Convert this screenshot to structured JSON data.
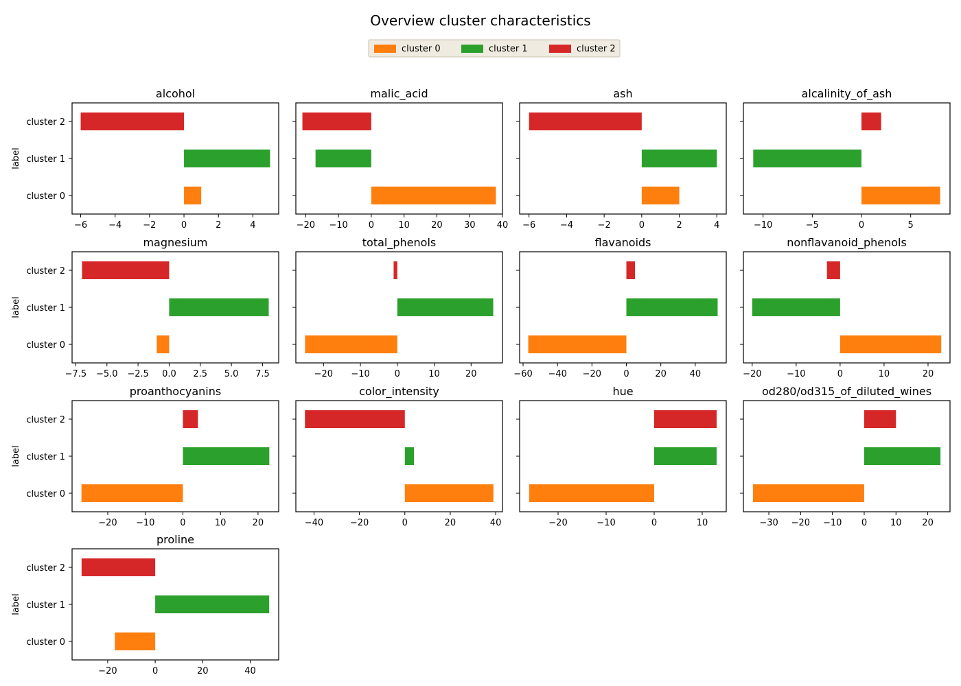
{
  "title": "Overview cluster characteristics",
  "legend": {
    "placement": "top-center",
    "entries": [
      {
        "label": "cluster 0",
        "color": "#ff7f0e"
      },
      {
        "label": "cluster 1",
        "color": "#2ca02c"
      },
      {
        "label": "cluster 2",
        "color": "#d62728"
      }
    ]
  },
  "chart_data": [
    {
      "type": "bar",
      "orientation": "horizontal",
      "title": "alcohol",
      "ylabel": "label",
      "categories": [
        "cluster 0",
        "cluster 1",
        "cluster 2"
      ],
      "values": [
        1,
        5,
        -6
      ],
      "xlim": [
        -6.5,
        5.5
      ],
      "xticks": [
        -6,
        -4,
        -2,
        0,
        2,
        4
      ],
      "xtick_labels": [
        "−6",
        "−4",
        "−2",
        "0",
        "2",
        "4"
      ]
    },
    {
      "type": "bar",
      "orientation": "horizontal",
      "title": "malic_acid",
      "ylabel": "",
      "categories": [
        "cluster 0",
        "cluster 1",
        "cluster 2"
      ],
      "values": [
        38,
        -17,
        -21
      ],
      "xlim": [
        -23,
        40
      ],
      "xticks": [
        -20,
        -10,
        0,
        10,
        20,
        30,
        40
      ],
      "xtick_labels": [
        "−20",
        "−10",
        "0",
        "10",
        "20",
        "30",
        "40"
      ]
    },
    {
      "type": "bar",
      "orientation": "horizontal",
      "title": "ash",
      "ylabel": "",
      "categories": [
        "cluster 0",
        "cluster 1",
        "cluster 2"
      ],
      "values": [
        2,
        4,
        -6
      ],
      "xlim": [
        -6.5,
        4.5
      ],
      "xticks": [
        -6,
        -4,
        -2,
        0,
        2,
        4
      ],
      "xtick_labels": [
        "−6",
        "−4",
        "−2",
        "0",
        "2",
        "4"
      ]
    },
    {
      "type": "bar",
      "orientation": "horizontal",
      "title": "alcalinity_of_ash",
      "ylabel": "",
      "categories": [
        "cluster 0",
        "cluster 1",
        "cluster 2"
      ],
      "values": [
        8,
        -11,
        2
      ],
      "xlim": [
        -12,
        9
      ],
      "xticks": [
        -10,
        -5,
        0,
        5
      ],
      "xtick_labels": [
        "−10",
        "−5",
        "0",
        "5"
      ]
    },
    {
      "type": "bar",
      "orientation": "horizontal",
      "title": "magnesium",
      "ylabel": "label",
      "categories": [
        "cluster 0",
        "cluster 1",
        "cluster 2"
      ],
      "values": [
        -1,
        8,
        -7
      ],
      "xlim": [
        -7.8,
        8.8
      ],
      "xticks": [
        -7.5,
        -5,
        -2.5,
        0,
        2.5,
        5,
        7.5
      ],
      "xtick_labels": [
        "−7.5",
        "−5.0",
        "−2.5",
        "0.0",
        "2.5",
        "5.0",
        "7.5"
      ]
    },
    {
      "type": "bar",
      "orientation": "horizontal",
      "title": "total_phenols",
      "ylabel": "",
      "categories": [
        "cluster 0",
        "cluster 1",
        "cluster 2"
      ],
      "values": [
        -25,
        26,
        -1
      ],
      "xlim": [
        -27.5,
        28.5
      ],
      "xticks": [
        -20,
        -10,
        0,
        10,
        20
      ],
      "xtick_labels": [
        "−20",
        "−10",
        "0",
        "10",
        "20"
      ]
    },
    {
      "type": "bar",
      "orientation": "horizontal",
      "title": "flavanoids",
      "ylabel": "",
      "categories": [
        "cluster 0",
        "cluster 1",
        "cluster 2"
      ],
      "values": [
        -57,
        53,
        5
      ],
      "xlim": [
        -62,
        58
      ],
      "xticks": [
        -60,
        -40,
        -20,
        0,
        20,
        40
      ],
      "xtick_labels": [
        "−60",
        "−40",
        "−20",
        "0",
        "20",
        "40"
      ]
    },
    {
      "type": "bar",
      "orientation": "horizontal",
      "title": "nonflavanoid_phenols",
      "ylabel": "",
      "categories": [
        "cluster 0",
        "cluster 1",
        "cluster 2"
      ],
      "values": [
        23,
        -20,
        -3
      ],
      "xlim": [
        -22,
        25
      ],
      "xticks": [
        -20,
        -10,
        0,
        10,
        20
      ],
      "xtick_labels": [
        "−20",
        "−10",
        "0",
        "10",
        "20"
      ]
    },
    {
      "type": "bar",
      "orientation": "horizontal",
      "title": "proanthocyanins",
      "ylabel": "label",
      "categories": [
        "cluster 0",
        "cluster 1",
        "cluster 2"
      ],
      "values": [
        -27,
        23,
        4
      ],
      "xlim": [
        -29.5,
        25.5
      ],
      "xticks": [
        -20,
        -10,
        0,
        10,
        20
      ],
      "xtick_labels": [
        "−20",
        "−10",
        "0",
        "10",
        "20"
      ]
    },
    {
      "type": "bar",
      "orientation": "horizontal",
      "title": "color_intensity",
      "ylabel": "",
      "categories": [
        "cluster 0",
        "cluster 1",
        "cluster 2"
      ],
      "values": [
        39,
        4,
        -44
      ],
      "xlim": [
        -48,
        43
      ],
      "xticks": [
        -40,
        -20,
        0,
        20,
        40
      ],
      "xtick_labels": [
        "−40",
        "−20",
        "0",
        "20",
        "40"
      ]
    },
    {
      "type": "bar",
      "orientation": "horizontal",
      "title": "hue",
      "ylabel": "",
      "categories": [
        "cluster 0",
        "cluster 1",
        "cluster 2"
      ],
      "values": [
        -26,
        13,
        13
      ],
      "xlim": [
        -28,
        15
      ],
      "xticks": [
        -20,
        -10,
        0,
        10
      ],
      "xtick_labels": [
        "−20",
        "−10",
        "0",
        "10"
      ]
    },
    {
      "type": "bar",
      "orientation": "horizontal",
      "title": "od280/od315_of_diluted_wines",
      "ylabel": "",
      "categories": [
        "cluster 0",
        "cluster 1",
        "cluster 2"
      ],
      "values": [
        -35,
        24,
        10
      ],
      "xlim": [
        -38,
        27
      ],
      "xticks": [
        -30,
        -20,
        -10,
        0,
        10,
        20
      ],
      "xtick_labels": [
        "−30",
        "−20",
        "−10",
        "0",
        "10",
        "20"
      ]
    },
    {
      "type": "bar",
      "orientation": "horizontal",
      "title": "proline",
      "ylabel": "label",
      "categories": [
        "cluster 0",
        "cluster 1",
        "cluster 2"
      ],
      "values": [
        -17,
        48,
        -31
      ],
      "xlim": [
        -35,
        52
      ],
      "xticks": [
        -20,
        0,
        20,
        40
      ],
      "xtick_labels": [
        "−20",
        "0",
        "20",
        "40"
      ]
    }
  ]
}
